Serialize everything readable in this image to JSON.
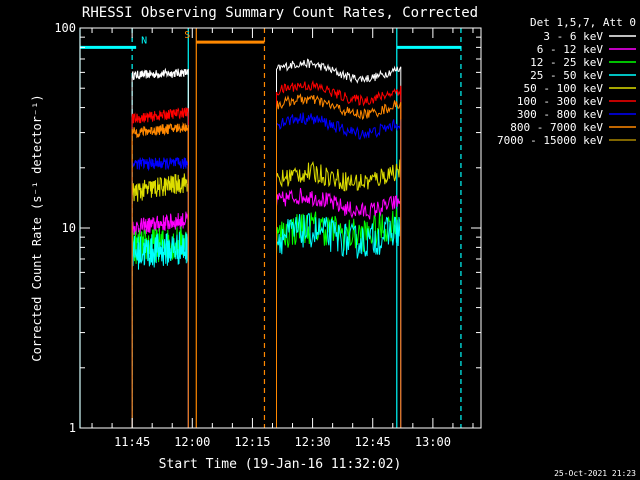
{
  "chart_data": {
    "type": "line",
    "title": "RHESSI Observing Summary Count Rates, Corrected",
    "xlabel": "Start Time (19-Jan-16 11:32:02)",
    "ylabel": "Corrected Count Rate (s⁻¹ detector⁻¹)",
    "yscale": "log",
    "ylim": [
      1,
      100
    ],
    "yticks": [
      "1",
      "10",
      "100"
    ],
    "xlim": [
      "11:32",
      "13:12"
    ],
    "xticks": [
      "11:45",
      "12:00",
      "12:15",
      "12:30",
      "12:45",
      "13:00"
    ],
    "legend_title": "Det 1,5,7, Att 0",
    "legend_position": "top-right",
    "footer_timestamp": "25-Oct-2021 21:23",
    "segments": [
      {
        "start": "11:45",
        "end": "11:59"
      },
      {
        "start": "12:21",
        "end": "12:52"
      }
    ],
    "series": [
      {
        "name": "3 - 6 keV",
        "color": "#ffffff",
        "seg_values": [
          [
            58,
            60
          ],
          [
            62,
            60
          ]
        ]
      },
      {
        "name": "6 - 12 keV",
        "color": "#ff00ff",
        "seg_values": [
          [
            10,
            11
          ],
          [
            13.5,
            13
          ]
        ]
      },
      {
        "name": "12 - 25 keV",
        "color": "#00ff00",
        "seg_values": [
          [
            8,
            8.5
          ],
          [
            9,
            10.5
          ]
        ]
      },
      {
        "name": "25 - 50 keV",
        "color": "#00ffff",
        "seg_values": [
          [
            7.5,
            8
          ],
          [
            8.8,
            9.5
          ]
        ]
      },
      {
        "name": "50 - 100 keV",
        "color": "#dddd00",
        "seg_values": [
          [
            15,
            17
          ],
          [
            17,
            19
          ]
        ]
      },
      {
        "name": "100 - 300 keV",
        "color": "#ff0000",
        "seg_values": [
          [
            35,
            38
          ],
          [
            48,
            47
          ]
        ]
      },
      {
        "name": "300 - 800 keV",
        "color": "#0000ff",
        "seg_values": [
          [
            21,
            21
          ],
          [
            33,
            32
          ]
        ]
      },
      {
        "name": "800 - 7000 keV",
        "color": "#ff8800",
        "seg_values": [
          [
            30,
            32
          ],
          [
            41,
            40
          ]
        ]
      },
      {
        "name": "7000 - 15000 keV",
        "color": "#aa8800",
        "seg_values": [
          [
            0,
            0
          ],
          [
            0,
            0
          ]
        ]
      }
    ],
    "markers": [
      {
        "label": "N",
        "color": "#00ffff",
        "line_start": "11:32",
        "line_end": "11:46",
        "level": 80
      },
      {
        "label": "S",
        "color": "#ff8800",
        "line_start": "12:01",
        "line_end": "12:18",
        "level": 85
      },
      {
        "label": "",
        "color": "#00ffff",
        "line_start": "12:51",
        "line_end": "13:07",
        "level": 80
      }
    ],
    "vlines": [
      {
        "t": "11:32",
        "color": "#00ffff",
        "style": "solid"
      },
      {
        "t": "11:45",
        "color": "#00ffff",
        "style": "dashed"
      },
      {
        "t": "11:59",
        "color": "#00ffff",
        "style": "solid"
      },
      {
        "t": "12:01",
        "color": "#ff8800",
        "style": "solid"
      },
      {
        "t": "12:18",
        "color": "#ff8800",
        "style": "dashed"
      },
      {
        "t": "12:51",
        "color": "#00ffff",
        "style": "solid"
      },
      {
        "t": "13:07",
        "color": "#00ffff",
        "style": "dashed"
      }
    ]
  }
}
